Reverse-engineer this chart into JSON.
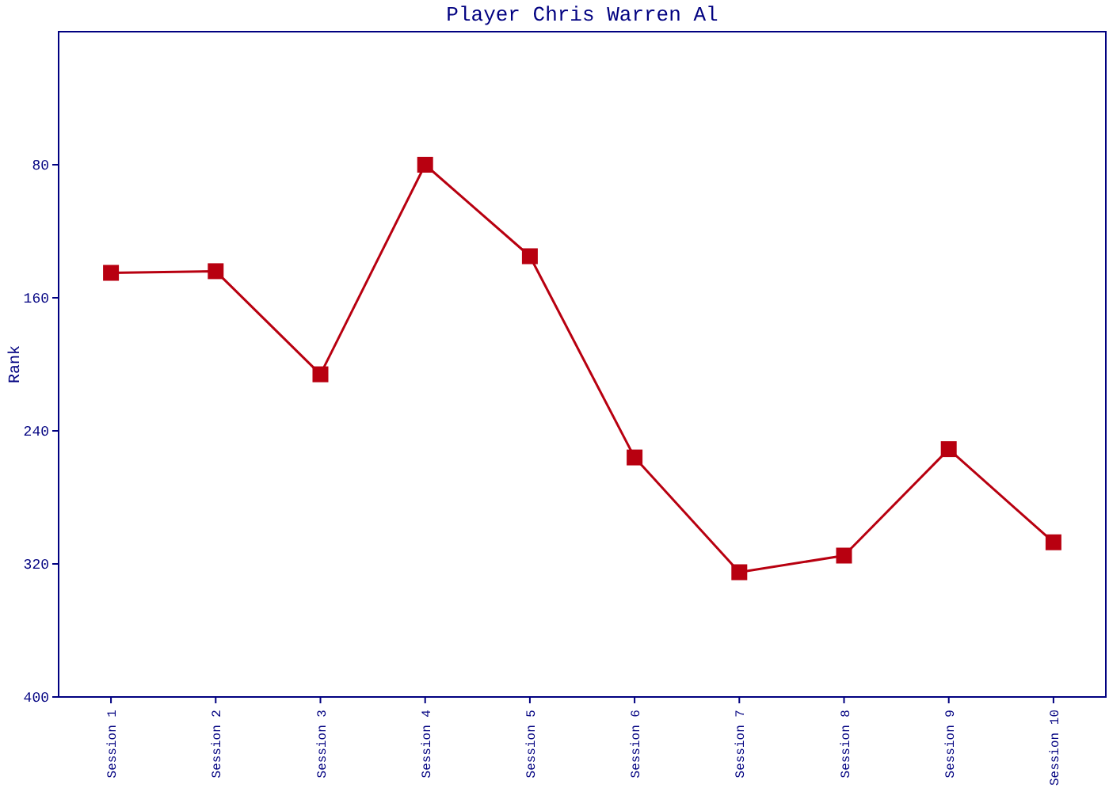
{
  "chart_data": {
    "type": "line",
    "title": "Player Chris Warren Al",
    "ylabel": "Rank",
    "categories": [
      "Session 1",
      "Session 2",
      "Session 3",
      "Session 4",
      "Session 5",
      "Session 6",
      "Session 7",
      "Session 8",
      "Session 9",
      "Session 10"
    ],
    "series": [
      {
        "color": "#b80010",
        "values": [
          145,
          144,
          206,
          80,
          135,
          256,
          325,
          315,
          251,
          307
        ]
      }
    ],
    "ylim": [
      400,
      0
    ],
    "yticks": [
      80,
      160,
      240,
      320,
      400
    ],
    "grid": false,
    "marker": "square",
    "line_style": "solid"
  }
}
